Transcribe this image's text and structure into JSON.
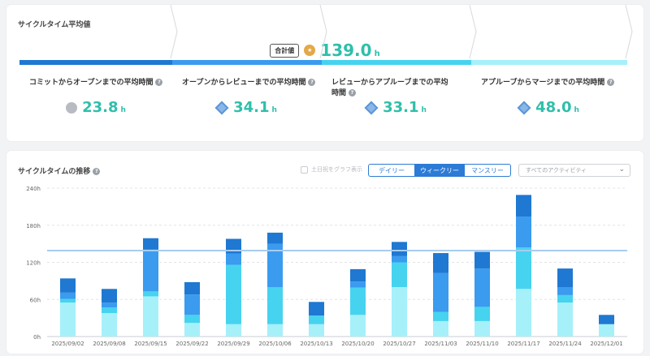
{
  "summary": {
    "title": "サイクルタイム平均値",
    "total_badge": "合計値",
    "total_value": "139.0",
    "unit": "h",
    "stages": [
      {
        "label": "コミットからオープンまでの平均時間",
        "value": "23.8",
        "icon": "cloud-icon",
        "bar_color": "#1f78d1"
      },
      {
        "label": "オープンからレビューまでの平均時間",
        "value": "34.1",
        "icon": "diamond-icon",
        "bar_color": "#3a9bef"
      },
      {
        "label": "レビューからアプルーブまでの平均時間",
        "value": "33.1",
        "icon": "diamond-icon",
        "bar_color": "#46d3ef"
      },
      {
        "label": "アプルーブからマージまでの平均時間",
        "value": "48.0",
        "icon": "diamond-icon",
        "bar_color": "#a6f0fa"
      }
    ]
  },
  "trend": {
    "title": "サイクルタイムの推移",
    "weekend_checkbox": "土日祝をグラフ表示",
    "tabs": [
      "デイリー",
      "ウィークリー",
      "マンスリー"
    ],
    "active_tab": "ウィークリー",
    "activity_select": "すべてのアクティビティ"
  },
  "chart_data": {
    "type": "bar",
    "stacked": true,
    "categories": [
      "2025/09/02",
      "2025/09/08",
      "2025/09/15",
      "2025/09/22",
      "2025/09/29",
      "2025/10/06",
      "2025/10/13",
      "2025/10/20",
      "2025/10/27",
      "2025/11/03",
      "2025/11/10",
      "2025/11/17",
      "2025/11/24",
      "2025/12/01"
    ],
    "series": [
      {
        "color": "#a6f0fa",
        "values": [
          55,
          38,
          65,
          22,
          20,
          20,
          20,
          35,
          80,
          25,
          25,
          77,
          55,
          20
        ]
      },
      {
        "color": "#46d3ef",
        "values": [
          6,
          9,
          8,
          13,
          96,
          60,
          14,
          44,
          40,
          15,
          23,
          67,
          12,
          0
        ]
      },
      {
        "color": "#3a9bef",
        "values": [
          10,
          8,
          68,
          33,
          18,
          70,
          0,
          10,
          10,
          63,
          62,
          50,
          13,
          0
        ]
      },
      {
        "color": "#1f78d1",
        "values": [
          23,
          22,
          18,
          20,
          24,
          18,
          22,
          20,
          23,
          32,
          27,
          35,
          30,
          15
        ]
      }
    ],
    "average_line": 139,
    "average_line_color": "#a8cdf0",
    "ylim": [
      0,
      240
    ],
    "yticks": [
      "0h",
      "60h",
      "120h",
      "180h",
      "240h"
    ],
    "grid": true
  }
}
